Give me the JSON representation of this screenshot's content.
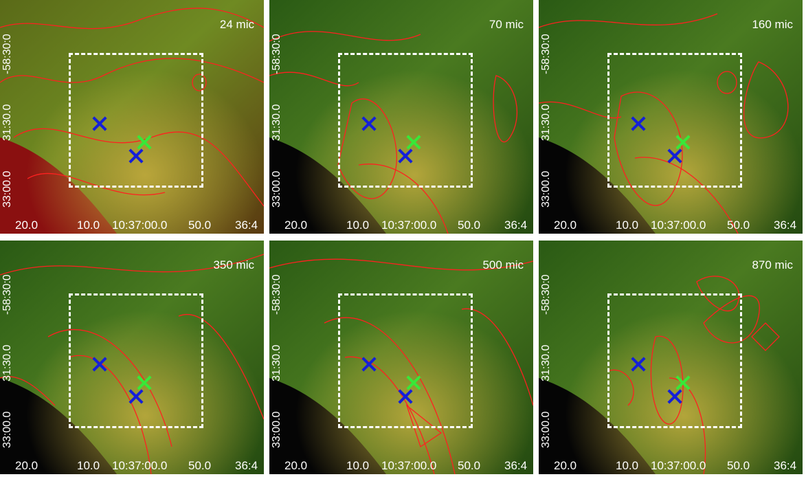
{
  "panels": [
    {
      "label": "24 mic",
      "bg": "red"
    },
    {
      "label": "70 mic",
      "bg": "dark"
    },
    {
      "label": "160 mic",
      "bg": "dark"
    },
    {
      "label": "350 mic",
      "bg": "dark"
    },
    {
      "label": "500 mic",
      "bg": "dark"
    },
    {
      "label": "870 mic",
      "bg": "dark"
    }
  ],
  "y_ticks": [
    "-58:30:0",
    "31:30.0",
    "33:00.0"
  ],
  "x_ticks": [
    "20.0",
    "10.0",
    "10:37:00.0",
    "50.0",
    "36:4"
  ],
  "colors": {
    "contour": "#ff2020",
    "marker_blue": "#1420d8",
    "marker_green": "#38e838",
    "box": "#ffffff"
  }
}
